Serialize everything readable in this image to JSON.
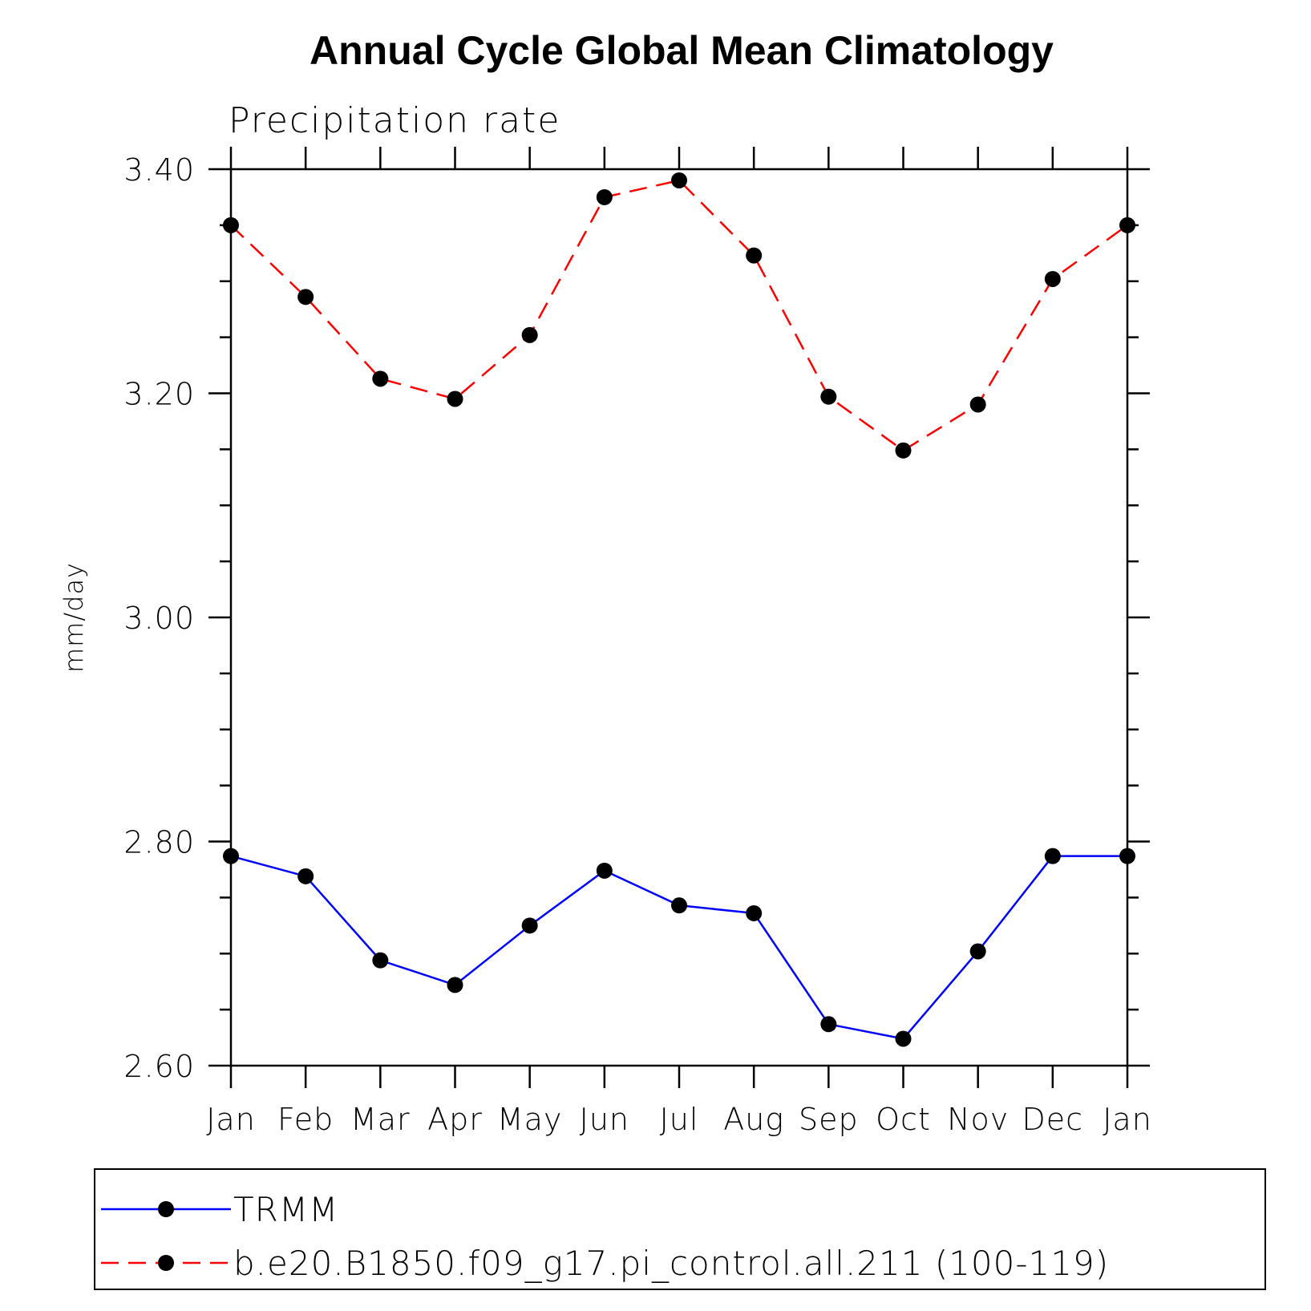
{
  "chart_data": {
    "type": "line",
    "title": "Annual Cycle Global Mean Climatology",
    "subtitle": "Precipitation rate",
    "xlabel": "",
    "ylabel": "mm/day",
    "ylim": [
      2.6,
      3.4
    ],
    "yticks": [
      2.6,
      2.8,
      3.0,
      3.2,
      3.4
    ],
    "ytick_labels": [
      "2.60",
      "2.80",
      "3.00",
      "3.20",
      "3.40"
    ],
    "categories": [
      "Jan",
      "Feb",
      "Mar",
      "Apr",
      "May",
      "Jun",
      "Jul",
      "Aug",
      "Sep",
      "Oct",
      "Nov",
      "Dec",
      "Jan"
    ],
    "series": [
      {
        "name": "TRMM",
        "color": "#0000ff",
        "dash": "solid",
        "values": [
          2.787,
          2.769,
          2.694,
          2.672,
          2.725,
          2.774,
          2.743,
          2.736,
          2.637,
          2.624,
          2.702,
          2.787,
          2.787
        ]
      },
      {
        "name": "b.e20.B1850.f09_g17.pi_control.all.211 (100-119)",
        "color": "#ff0000",
        "dash": "dashed",
        "values": [
          3.35,
          3.286,
          3.213,
          3.195,
          3.252,
          3.375,
          3.39,
          3.323,
          3.197,
          3.149,
          3.19,
          3.302,
          3.35
        ]
      }
    ],
    "legend_position": "bottom"
  }
}
